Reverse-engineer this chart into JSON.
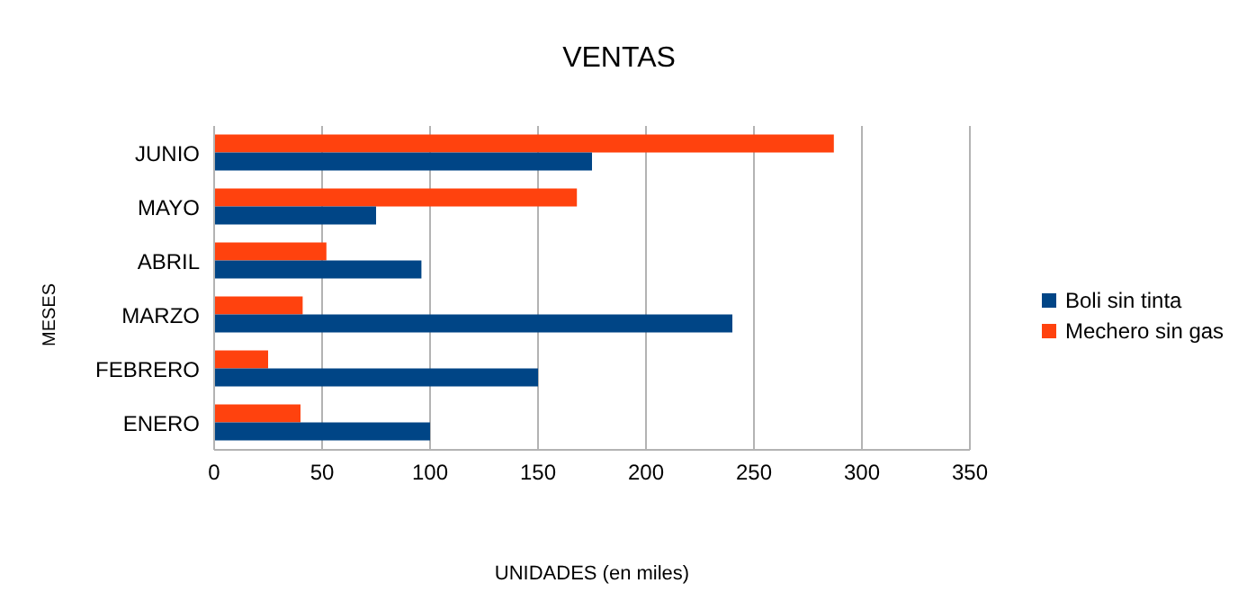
{
  "chart_data": {
    "type": "bar",
    "orientation": "horizontal",
    "title": "VENTAS",
    "xlabel": "UNIDADES (en miles)",
    "ylabel": "MESES",
    "categories": [
      "JUNIO",
      "MAYO",
      "ABRIL",
      "MARZO",
      "FEBRERO",
      "ENERO"
    ],
    "series": [
      {
        "name": "Boli sin tinta",
        "color": "#004586",
        "values": [
          175,
          75,
          96,
          240,
          150,
          100
        ]
      },
      {
        "name": "Mechero sin gas",
        "color": "#ff420e",
        "values": [
          287,
          168,
          52,
          41,
          25,
          40
        ]
      }
    ],
    "xlim": [
      0,
      350
    ],
    "xticks": [
      0,
      50,
      100,
      150,
      200,
      250,
      300,
      350
    ],
    "grid": "x",
    "legend": "right"
  }
}
